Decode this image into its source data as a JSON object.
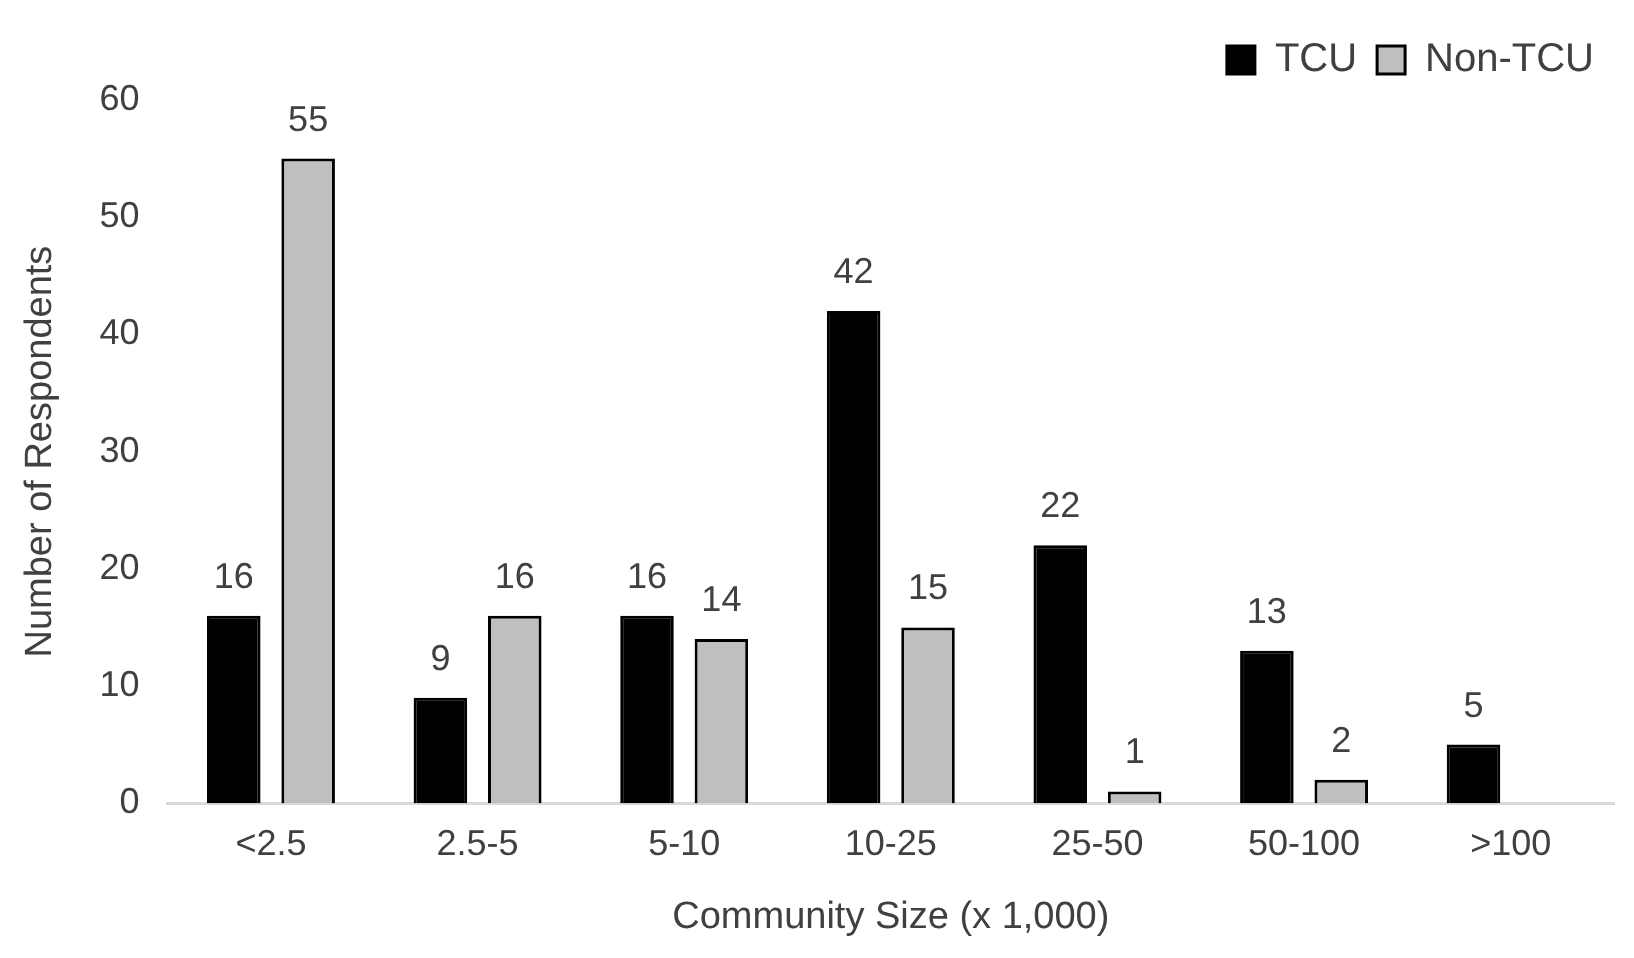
{
  "chart_data": {
    "type": "bar",
    "xlabel": "Community Size (x 1,000)",
    "ylabel": "Number of Respondents",
    "categories": [
      "<2.5",
      "2.5-5",
      "5-10",
      "10-25",
      "25-50",
      "50-100",
      ">100"
    ],
    "series": [
      {
        "name": "TCU",
        "color": "#000000",
        "values": [
          16,
          9,
          16,
          42,
          22,
          13,
          5
        ]
      },
      {
        "name": "Non-TCU",
        "color": "#bfbfbf",
        "values": [
          55,
          16,
          14,
          15,
          1,
          2,
          null
        ]
      }
    ],
    "ylim": [
      0,
      60
    ],
    "yticks": [
      0,
      10,
      20,
      30,
      40,
      50,
      60
    ],
    "grid": false,
    "legend": "top right",
    "data_labels": true
  }
}
